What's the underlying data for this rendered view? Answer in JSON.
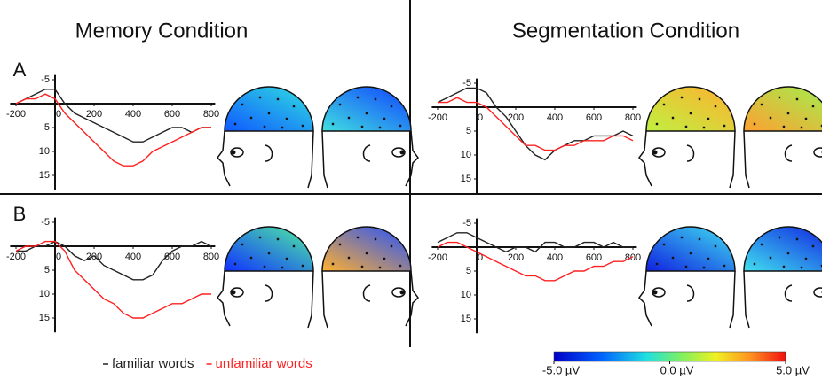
{
  "column_titles": [
    "Memory Condition",
    "Segmentation Condition"
  ],
  "row_labels": [
    "A",
    "B"
  ],
  "chart_data": [
    {
      "type": "line",
      "y_inverted": true,
      "x": [
        -200,
        -150,
        -100,
        -50,
        0,
        50,
        100,
        150,
        200,
        250,
        300,
        350,
        400,
        450,
        500,
        550,
        600,
        650,
        700,
        750,
        800
      ],
      "xlim": [
        -230,
        820
      ],
      "ylim": [
        -6,
        18
      ],
      "xticks": [
        -200,
        0,
        200,
        400,
        600,
        800
      ],
      "yticks": [
        -5,
        5,
        10,
        15
      ],
      "series": [
        {
          "name": "familiar words",
          "color": "#222222",
          "values": [
            0,
            -1,
            -2,
            -3,
            -3,
            0,
            2,
            3,
            4,
            5,
            6,
            7,
            8,
            8,
            7,
            6,
            5,
            5,
            6,
            5,
            5
          ]
        },
        {
          "name": "unfamiliar words",
          "color": "#ff2020",
          "values": [
            0,
            -1,
            -1,
            -2,
            -1,
            2,
            4,
            6,
            8,
            10,
            12,
            13,
            13,
            12,
            10,
            9,
            8,
            7,
            6,
            5,
            5
          ]
        }
      ]
    },
    {
      "type": "line",
      "y_inverted": true,
      "x": [
        -200,
        -150,
        -100,
        -50,
        0,
        50,
        100,
        150,
        200,
        250,
        300,
        350,
        400,
        450,
        500,
        550,
        600,
        650,
        700,
        750,
        800
      ],
      "xlim": [
        -230,
        820
      ],
      "ylim": [
        -6,
        18
      ],
      "xticks": [
        -200,
        0,
        200,
        400,
        600,
        800
      ],
      "yticks": [
        -5,
        5,
        10,
        15
      ],
      "series": [
        {
          "name": "familiar words",
          "color": "#222222",
          "values": [
            -1,
            -2,
            -3,
            -4,
            -4,
            -3,
            0,
            2,
            5,
            8,
            10,
            11,
            9,
            8,
            7,
            7,
            6,
            6,
            6,
            5,
            6
          ]
        },
        {
          "name": "unfamiliar words",
          "color": "#ff2020",
          "values": [
            -1,
            -1,
            -2,
            -1,
            -1,
            0,
            2,
            4,
            6,
            8,
            8,
            9,
            9,
            8,
            8,
            7,
            7,
            7,
            6,
            6,
            7
          ]
        }
      ]
    },
    {
      "type": "line",
      "y_inverted": true,
      "x": [
        -200,
        -150,
        -100,
        -50,
        0,
        50,
        100,
        150,
        200,
        250,
        300,
        350,
        400,
        450,
        500,
        550,
        600,
        650,
        700,
        750,
        800
      ],
      "xlim": [
        -230,
        820
      ],
      "ylim": [
        -6,
        18
      ],
      "xticks": [
        -200,
        0,
        200,
        400,
        600,
        800
      ],
      "yticks": [
        -5,
        5,
        10,
        15
      ],
      "series": [
        {
          "name": "familiar words",
          "color": "#222222",
          "values": [
            1,
            1,
            0,
            0,
            -1,
            0,
            2,
            3,
            2,
            4,
            5,
            6,
            7,
            7,
            6,
            3,
            1,
            0,
            0,
            -1,
            0
          ]
        },
        {
          "name": "unfamiliar words",
          "color": "#ff2020",
          "values": [
            1,
            0,
            0,
            -1,
            -1,
            1,
            5,
            7,
            9,
            11,
            12,
            14,
            15,
            15,
            14,
            13,
            12,
            12,
            11,
            10,
            10
          ]
        }
      ]
    },
    {
      "type": "line",
      "y_inverted": true,
      "x": [
        -200,
        -150,
        -100,
        -50,
        0,
        50,
        100,
        150,
        200,
        250,
        300,
        350,
        400,
        450,
        500,
        550,
        600,
        650,
        700,
        750,
        800
      ],
      "xlim": [
        -230,
        820
      ],
      "ylim": [
        -6,
        18
      ],
      "xticks": [
        -200,
        0,
        200,
        400,
        600,
        800
      ],
      "yticks": [
        -5,
        5,
        10,
        15
      ],
      "series": [
        {
          "name": "familiar words",
          "color": "#222222",
          "values": [
            -1,
            -2,
            -3,
            -3,
            -2,
            -1,
            0,
            1,
            0,
            0,
            1,
            -1,
            -1,
            0,
            0,
            -1,
            -1,
            0,
            -1,
            0,
            0
          ]
        },
        {
          "name": "unfamiliar words",
          "color": "#ff2020",
          "values": [
            0,
            -1,
            -1,
            0,
            1,
            2,
            3,
            4,
            5,
            6,
            6,
            7,
            7,
            6,
            5,
            5,
            4,
            4,
            3,
            3,
            2
          ]
        }
      ]
    }
  ],
  "colorbar": {
    "lim": [
      -5,
      5
    ],
    "ticks": [
      {
        "value": -5,
        "label": "-5.0 µV"
      },
      {
        "value": 0,
        "label": "0.0 µV"
      },
      {
        "value": 5,
        "label": "5.0 µV"
      }
    ]
  }
}
